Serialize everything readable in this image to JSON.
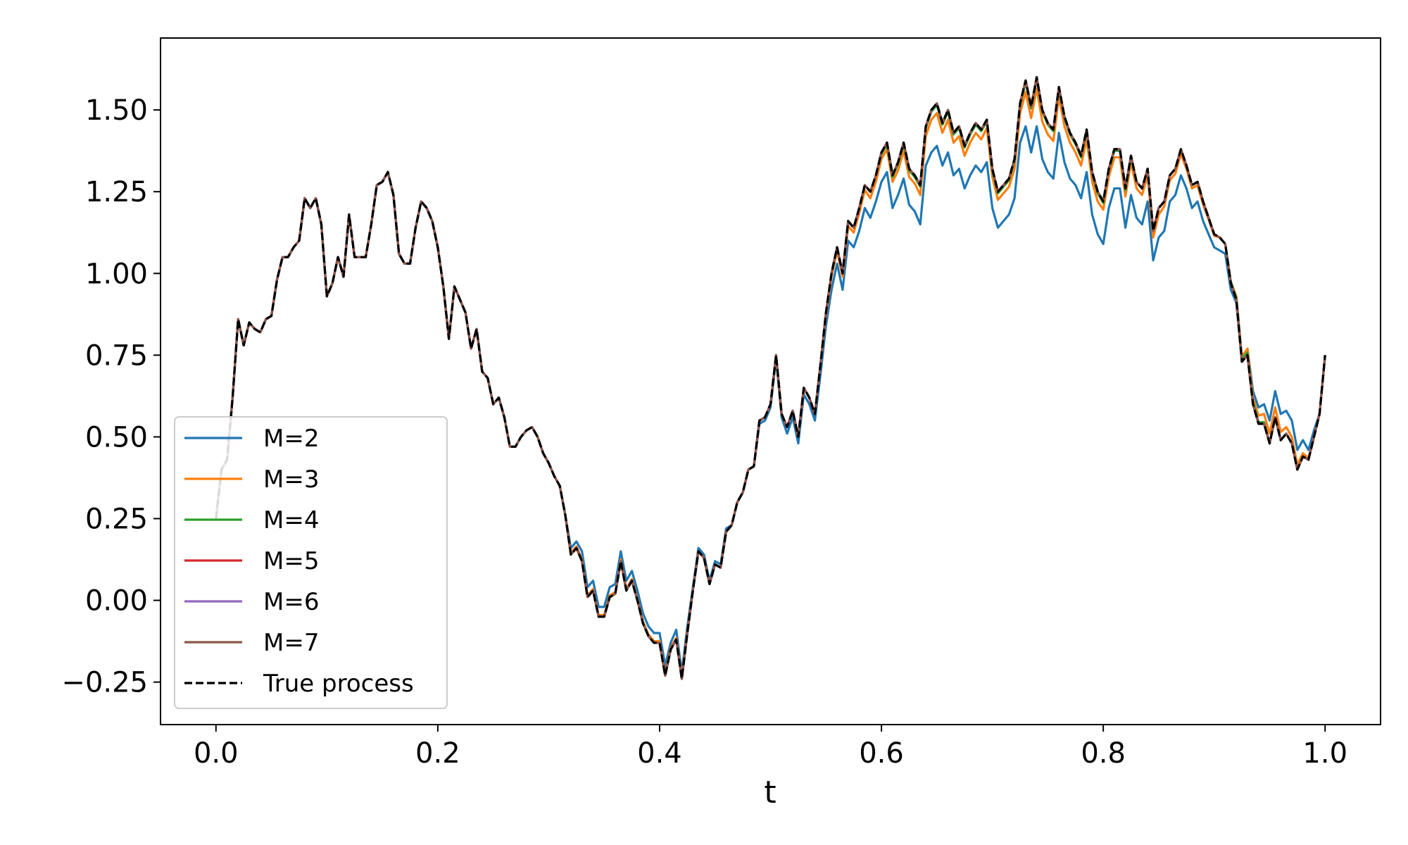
{
  "chart_data": {
    "type": "line",
    "xlabel": "t",
    "ylabel": "",
    "xlim": [
      -0.05,
      1.05
    ],
    "ylim": [
      -0.38,
      1.72
    ],
    "xticks": [
      0.0,
      0.2,
      0.4,
      0.6,
      0.8,
      1.0
    ],
    "xtick_labels": [
      "0.0",
      "0.2",
      "0.4",
      "0.6",
      "0.8",
      "1.0"
    ],
    "yticks": [
      -0.25,
      0.0,
      0.25,
      0.5,
      0.75,
      1.0,
      1.25,
      1.5
    ],
    "ytick_labels": [
      "−0.25",
      "0.00",
      "0.25",
      "0.50",
      "0.75",
      "1.00",
      "1.25",
      "1.50"
    ],
    "grid": false,
    "legend_position": "lower-left",
    "x": [
      0.0,
      0.005,
      0.01,
      0.015,
      0.02,
      0.025,
      0.03,
      0.035,
      0.04,
      0.045,
      0.05,
      0.055,
      0.06,
      0.065,
      0.07,
      0.075,
      0.08,
      0.085,
      0.09,
      0.095,
      0.1,
      0.105,
      0.11,
      0.115,
      0.12,
      0.125,
      0.13,
      0.135,
      0.14,
      0.145,
      0.15,
      0.155,
      0.16,
      0.165,
      0.17,
      0.175,
      0.18,
      0.185,
      0.19,
      0.195,
      0.2,
      0.205,
      0.21,
      0.215,
      0.22,
      0.225,
      0.23,
      0.235,
      0.24,
      0.245,
      0.25,
      0.255,
      0.26,
      0.265,
      0.27,
      0.275,
      0.28,
      0.285,
      0.29,
      0.295,
      0.3,
      0.305,
      0.31,
      0.315,
      0.32,
      0.325,
      0.33,
      0.335,
      0.34,
      0.345,
      0.35,
      0.355,
      0.36,
      0.365,
      0.37,
      0.375,
      0.38,
      0.385,
      0.39,
      0.395,
      0.4,
      0.405,
      0.41,
      0.415,
      0.42,
      0.425,
      0.43,
      0.435,
      0.44,
      0.445,
      0.45,
      0.455,
      0.46,
      0.465,
      0.47,
      0.475,
      0.48,
      0.485,
      0.49,
      0.495,
      0.5,
      0.505,
      0.51,
      0.515,
      0.52,
      0.525,
      0.53,
      0.535,
      0.54,
      0.545,
      0.55,
      0.555,
      0.56,
      0.565,
      0.57,
      0.575,
      0.58,
      0.585,
      0.59,
      0.595,
      0.6,
      0.605,
      0.61,
      0.615,
      0.62,
      0.625,
      0.63,
      0.635,
      0.64,
      0.645,
      0.65,
      0.655,
      0.66,
      0.665,
      0.67,
      0.675,
      0.68,
      0.685,
      0.69,
      0.695,
      0.7,
      0.705,
      0.71,
      0.715,
      0.72,
      0.725,
      0.73,
      0.735,
      0.74,
      0.745,
      0.75,
      0.755,
      0.76,
      0.765,
      0.77,
      0.775,
      0.78,
      0.785,
      0.79,
      0.795,
      0.8,
      0.805,
      0.81,
      0.815,
      0.82,
      0.825,
      0.83,
      0.835,
      0.84,
      0.845,
      0.85,
      0.855,
      0.86,
      0.865,
      0.87,
      0.875,
      0.88,
      0.885,
      0.89,
      0.895,
      0.9,
      0.905,
      0.91,
      0.915,
      0.92,
      0.925,
      0.93,
      0.935,
      0.94,
      0.945,
      0.95,
      0.955,
      0.96,
      0.965,
      0.97,
      0.975,
      0.98,
      0.985,
      0.99,
      0.995,
      1.0
    ],
    "true_process": [
      0.25,
      0.4,
      0.43,
      0.62,
      0.86,
      0.78,
      0.85,
      0.83,
      0.82,
      0.86,
      0.87,
      0.98,
      1.05,
      1.05,
      1.08,
      1.1,
      1.23,
      1.2,
      1.23,
      1.15,
      0.93,
      0.97,
      1.05,
      0.99,
      1.18,
      1.05,
      1.05,
      1.05,
      1.15,
      1.27,
      1.28,
      1.31,
      1.24,
      1.06,
      1.03,
      1.03,
      1.14,
      1.22,
      1.2,
      1.16,
      1.08,
      0.96,
      0.8,
      0.96,
      0.92,
      0.88,
      0.77,
      0.83,
      0.7,
      0.68,
      0.6,
      0.62,
      0.56,
      0.47,
      0.47,
      0.5,
      0.52,
      0.53,
      0.5,
      0.45,
      0.42,
      0.38,
      0.35,
      0.26,
      0.14,
      0.16,
      0.12,
      0.01,
      0.03,
      -0.05,
      -0.05,
      0.01,
      0.02,
      0.12,
      0.03,
      0.06,
      0.0,
      -0.07,
      -0.11,
      -0.13,
      -0.13,
      -0.23,
      -0.15,
      -0.12,
      -0.24,
      -0.1,
      0.03,
      0.15,
      0.13,
      0.05,
      0.11,
      0.1,
      0.21,
      0.23,
      0.3,
      0.33,
      0.4,
      0.41,
      0.55,
      0.56,
      0.6,
      0.75,
      0.57,
      0.53,
      0.58,
      0.5,
      0.65,
      0.62,
      0.57,
      0.72,
      0.88,
      1.0,
      1.08,
      1.0,
      1.16,
      1.14,
      1.2,
      1.27,
      1.25,
      1.3,
      1.37,
      1.4,
      1.3,
      1.34,
      1.4,
      1.32,
      1.3,
      1.27,
      1.45,
      1.5,
      1.52,
      1.46,
      1.5,
      1.43,
      1.45,
      1.39,
      1.43,
      1.46,
      1.44,
      1.47,
      1.32,
      1.25,
      1.27,
      1.29,
      1.35,
      1.52,
      1.59,
      1.51,
      1.6,
      1.5,
      1.46,
      1.44,
      1.57,
      1.48,
      1.43,
      1.4,
      1.36,
      1.44,
      1.31,
      1.25,
      1.22,
      1.32,
      1.38,
      1.38,
      1.26,
      1.36,
      1.28,
      1.26,
      1.32,
      1.13,
      1.2,
      1.22,
      1.3,
      1.32,
      1.38,
      1.33,
      1.27,
      1.28,
      1.22,
      1.17,
      1.12,
      1.11,
      1.09,
      0.97,
      0.92,
      0.73,
      0.75,
      0.6,
      0.54,
      0.54,
      0.48,
      0.56,
      0.49,
      0.51,
      0.48,
      0.4,
      0.44,
      0.43,
      0.5,
      0.57,
      0.75,
      0.85
    ],
    "series": [
      {
        "name": "M=2",
        "color": "#1f77b4",
        "offset": [
          0,
          0,
          0,
          0,
          0,
          0,
          0,
          0,
          0,
          0,
          0,
          0,
          0,
          0,
          0,
          0,
          0,
          0,
          0,
          0,
          0,
          0,
          0,
          0,
          0,
          0,
          0,
          0,
          0,
          0,
          0,
          0,
          0,
          0,
          0,
          0,
          0,
          0,
          0,
          0,
          0,
          0,
          0,
          0,
          0,
          0,
          0,
          0,
          0,
          0,
          0,
          0,
          0,
          0,
          0,
          0,
          0,
          0,
          0,
          0,
          0,
          0,
          0,
          0,
          0.02,
          0.02,
          0.03,
          0.03,
          0.03,
          0.03,
          0.03,
          0.03,
          0.03,
          0.03,
          0.03,
          0.03,
          0.03,
          0.03,
          0.03,
          0.03,
          0.03,
          0.03,
          0.02,
          0.03,
          0.02,
          0.02,
          0.01,
          0.01,
          0.01,
          0.01,
          0.01,
          0.01,
          0.01,
          0.0,
          0.0,
          0.0,
          0.0,
          0.0,
          -0.01,
          -0.01,
          -0.01,
          -0.01,
          -0.01,
          -0.02,
          -0.02,
          -0.02,
          -0.02,
          -0.02,
          -0.02,
          -0.03,
          -0.04,
          -0.05,
          -0.05,
          -0.05,
          -0.06,
          -0.06,
          -0.07,
          -0.07,
          -0.08,
          -0.08,
          -0.09,
          -0.09,
          -0.1,
          -0.1,
          -0.11,
          -0.11,
          -0.11,
          -0.12,
          -0.12,
          -0.13,
          -0.13,
          -0.13,
          -0.13,
          -0.13,
          -0.13,
          -0.13,
          -0.13,
          -0.13,
          -0.13,
          -0.13,
          -0.12,
          -0.11,
          -0.11,
          -0.11,
          -0.12,
          -0.12,
          -0.14,
          -0.14,
          -0.15,
          -0.15,
          -0.15,
          -0.15,
          -0.14,
          -0.14,
          -0.14,
          -0.13,
          -0.13,
          -0.13,
          -0.13,
          -0.13,
          -0.13,
          -0.12,
          -0.12,
          -0.12,
          -0.12,
          -0.12,
          -0.11,
          -0.11,
          -0.1,
          -0.09,
          -0.09,
          -0.09,
          -0.08,
          -0.08,
          -0.08,
          -0.07,
          -0.07,
          -0.06,
          -0.06,
          -0.05,
          -0.04,
          -0.04,
          -0.03,
          -0.02,
          -0.01,
          0.0,
          0.02,
          0.04,
          0.05,
          0.06,
          0.07,
          0.08,
          0.08,
          0.07,
          0.07,
          0.06,
          0.05,
          0.03,
          0.02
        ]
      },
      {
        "name": "M=3",
        "color": "#ff7f0e",
        "offset": [
          0,
          0,
          0,
          0,
          0,
          0,
          0,
          0,
          0,
          0,
          0,
          0,
          0,
          0,
          0,
          0,
          0,
          0,
          0,
          0,
          0,
          0,
          0,
          0,
          0,
          0,
          0,
          0,
          0,
          0,
          0,
          0,
          0,
          0,
          0,
          0,
          0,
          0,
          0,
          0,
          0,
          0,
          0,
          0,
          0,
          0,
          0,
          0,
          0,
          0,
          0,
          0,
          0,
          0,
          0,
          0,
          0,
          0,
          0,
          0,
          0,
          0,
          0,
          0,
          0.005,
          0.005,
          0.005,
          0.005,
          0.005,
          0.005,
          0.005,
          0.005,
          0.005,
          0.005,
          0.005,
          0.005,
          0.005,
          0.005,
          0.005,
          0.005,
          0.005,
          0.005,
          0.005,
          0.005,
          0.005,
          0.005,
          0,
          0,
          0,
          0,
          0,
          0,
          0,
          0,
          0,
          0,
          0,
          0,
          0,
          0,
          0,
          0,
          0,
          0,
          0,
          0,
          0,
          0,
          0,
          0,
          -0.01,
          -0.01,
          -0.01,
          -0.01,
          -0.015,
          -0.015,
          -0.015,
          -0.015,
          -0.02,
          -0.02,
          -0.02,
          -0.02,
          -0.02,
          -0.025,
          -0.025,
          -0.025,
          -0.025,
          -0.03,
          -0.03,
          -0.03,
          -0.03,
          -0.03,
          -0.03,
          -0.03,
          -0.03,
          -0.03,
          -0.03,
          -0.03,
          -0.03,
          -0.025,
          -0.025,
          -0.025,
          -0.025,
          -0.025,
          -0.03,
          -0.03,
          -0.035,
          -0.035,
          -0.035,
          -0.035,
          -0.035,
          -0.035,
          -0.03,
          -0.03,
          -0.03,
          -0.03,
          -0.03,
          -0.03,
          -0.03,
          -0.03,
          -0.025,
          -0.025,
          -0.025,
          -0.025,
          -0.025,
          -0.02,
          -0.02,
          -0.02,
          -0.02,
          -0.02,
          -0.02,
          -0.015,
          -0.015,
          -0.015,
          -0.015,
          -0.01,
          -0.01,
          -0.01,
          -0.01,
          -0.005,
          -0.005,
          0,
          0,
          0.005,
          0.01,
          0.015,
          0.02,
          0.02,
          0.025,
          0.03,
          0.03,
          0.03,
          0.025,
          0.02,
          0.02,
          0.015,
          0.01,
          0.005
        ]
      },
      {
        "name": "M=4",
        "color": "#2ca02c",
        "offset": [
          0,
          0,
          0,
          0,
          0,
          0,
          0,
          0,
          0,
          0,
          0,
          0,
          0,
          0,
          0,
          0,
          0,
          0,
          0,
          0,
          0,
          0,
          0,
          0,
          0,
          0,
          0,
          0,
          0,
          0,
          0,
          0,
          0,
          0,
          0,
          0,
          0,
          0,
          0,
          0,
          0,
          0,
          0,
          0,
          0,
          0,
          0,
          0,
          0,
          0,
          0,
          0,
          0,
          0,
          0,
          0,
          0,
          0,
          0,
          0,
          0,
          0,
          0,
          0,
          0,
          0,
          0,
          0,
          0,
          0,
          0,
          0,
          0,
          0,
          0,
          0,
          0,
          0,
          0,
          0,
          0,
          0,
          0,
          0,
          0,
          0,
          0,
          0,
          0,
          0,
          0,
          0,
          0,
          0,
          0,
          0,
          0,
          0,
          0,
          0,
          0,
          0,
          0,
          0,
          0,
          0,
          0,
          0,
          0,
          0,
          0,
          0,
          0,
          0,
          0,
          0,
          0,
          0,
          0,
          0,
          -0.005,
          -0.005,
          -0.005,
          -0.005,
          -0.005,
          -0.005,
          -0.005,
          -0.005,
          -0.005,
          -0.005,
          -0.005,
          -0.005,
          -0.005,
          -0.005,
          -0.005,
          -0.005,
          -0.005,
          -0.005,
          -0.005,
          -0.005,
          -0.005,
          -0.005,
          -0.005,
          -0.005,
          -0.005,
          -0.005,
          -0.005,
          -0.005,
          -0.005,
          -0.005,
          -0.005,
          -0.005,
          -0.005,
          -0.005,
          -0.005,
          -0.005,
          -0.005,
          -0.005,
          -0.005,
          -0.005,
          -0.005,
          -0.005,
          -0.005,
          -0.005,
          -0.005,
          -0.005,
          0,
          0,
          0,
          0,
          0,
          0,
          0,
          0,
          0,
          0,
          0,
          0,
          0,
          0,
          0,
          0,
          0,
          0.005,
          0.005,
          0.008,
          0.008,
          0.008,
          0.005,
          0.005,
          0,
          0,
          0
        ]
      },
      {
        "name": "M=5",
        "color": "#d62728",
        "offset": []
      },
      {
        "name": "M=6",
        "color": "#9467bd",
        "offset": []
      },
      {
        "name": "M=7",
        "color": "#8c564b",
        "offset": []
      }
    ],
    "true_series": {
      "name": "True process",
      "color": "#000000",
      "style": "dashed"
    }
  }
}
